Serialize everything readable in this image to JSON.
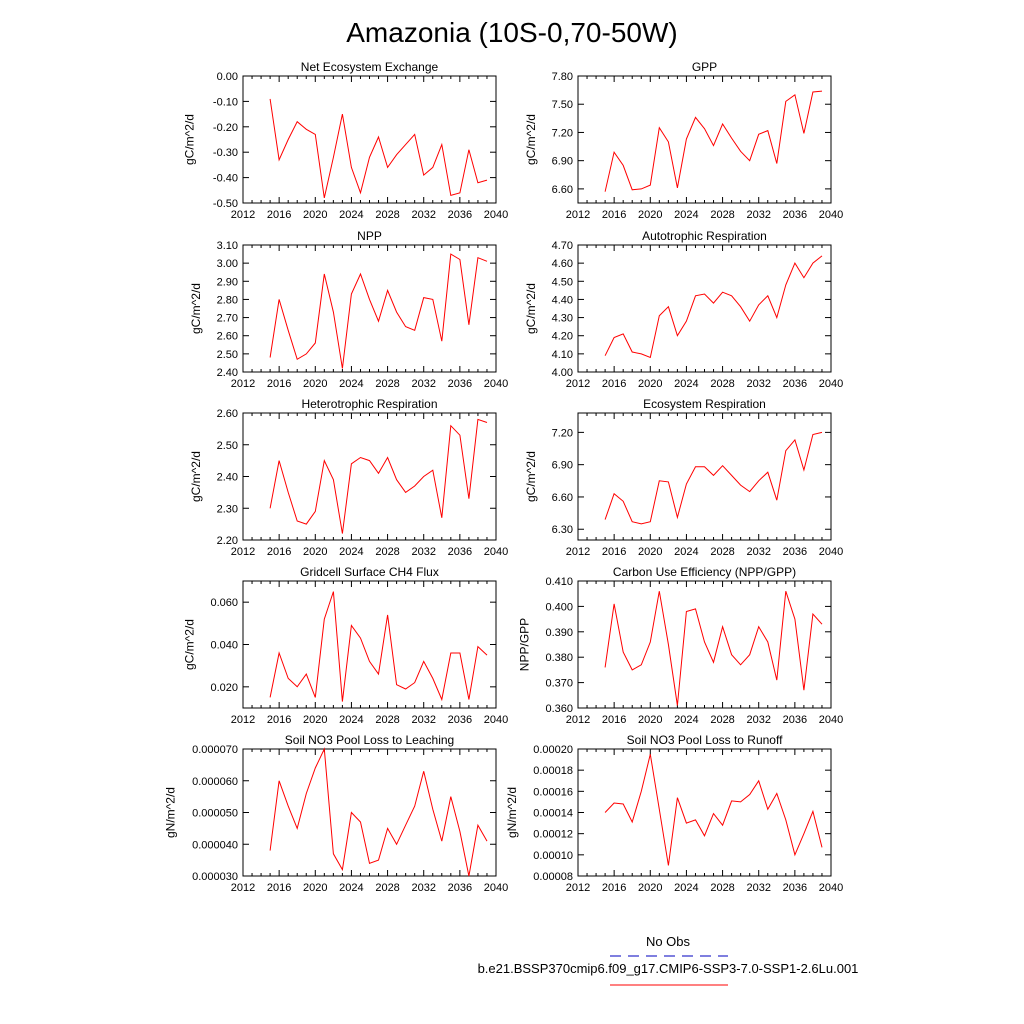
{
  "figure": {
    "title": "Amazonia (10S-0,70-50W)",
    "legend": {
      "obs_label": "No Obs",
      "obs_color": "#3333cc",
      "model_label": "b.e21.BSSP370cmip6.f09_g17.CMIP6-SSP3-7.0-SSP1-2.6Lu.001",
      "model_color": "#ff0000"
    }
  },
  "chart_data": [
    {
      "type": "line",
      "title": "Net Ecosystem Exchange",
      "ylabel": "gC/m^2/d",
      "xlabel": "",
      "xlim": [
        2012,
        2040
      ],
      "ylim": [
        -0.5,
        0.0
      ],
      "xticks": [
        "2012",
        "2016",
        "2020",
        "2024",
        "2028",
        "2032",
        "2036",
        "2040"
      ],
      "yticks": [
        "0.00",
        "-0.10",
        "-0.20",
        "-0.30",
        "-0.40",
        "-0.50"
      ],
      "yticks_values": [
        0.0,
        -0.1,
        -0.2,
        -0.3,
        -0.4,
        -0.5
      ],
      "series": [
        {
          "color": "#ff0000",
          "x": [
            2015,
            2016,
            2017,
            2018,
            2019,
            2020,
            2021,
            2022,
            2023,
            2024,
            2025,
            2026,
            2027,
            2028,
            2029,
            2030,
            2031,
            2032,
            2033,
            2034,
            2035,
            2036,
            2037,
            2038,
            2039
          ],
          "y": [
            -0.09,
            -0.33,
            -0.25,
            -0.18,
            -0.21,
            -0.23,
            -0.48,
            -0.32,
            -0.15,
            -0.36,
            -0.46,
            -0.32,
            -0.24,
            -0.36,
            -0.31,
            -0.27,
            -0.23,
            -0.39,
            -0.36,
            -0.27,
            -0.47,
            -0.46,
            -0.29,
            -0.42,
            -0.41
          ]
        }
      ]
    },
    {
      "type": "line",
      "title": "GPP",
      "ylabel": "gC/m^2/d",
      "xlabel": "",
      "xlim": [
        2012,
        2040
      ],
      "ylim": [
        6.45,
        7.8
      ],
      "xticks": [
        "2012",
        "2016",
        "2020",
        "2024",
        "2028",
        "2032",
        "2036",
        "2040"
      ],
      "yticks": [
        "7.80",
        "7.50",
        "7.20",
        "6.90",
        "6.60"
      ],
      "yticks_values": [
        7.8,
        7.5,
        7.2,
        6.9,
        6.6
      ],
      "series": [
        {
          "color": "#ff0000",
          "x": [
            2015,
            2016,
            2017,
            2018,
            2019,
            2020,
            2021,
            2022,
            2023,
            2024,
            2025,
            2026,
            2027,
            2028,
            2029,
            2030,
            2031,
            2032,
            2033,
            2034,
            2035,
            2036,
            2037,
            2038,
            2039
          ],
          "y": [
            6.57,
            6.99,
            6.85,
            6.59,
            6.6,
            6.64,
            7.25,
            7.1,
            6.61,
            7.13,
            7.36,
            7.24,
            7.06,
            7.29,
            7.14,
            7.0,
            6.9,
            7.18,
            7.22,
            6.87,
            7.53,
            7.6,
            7.19,
            7.63,
            7.64
          ]
        }
      ]
    },
    {
      "type": "line",
      "title": "NPP",
      "ylabel": "gC/m^2/d",
      "xlabel": "",
      "xlim": [
        2012,
        2040
      ],
      "ylim": [
        2.4,
        3.1
      ],
      "xticks": [
        "2012",
        "2016",
        "2020",
        "2024",
        "2028",
        "2032",
        "2036",
        "2040"
      ],
      "yticks": [
        "3.10",
        "3.00",
        "2.90",
        "2.80",
        "2.70",
        "2.60",
        "2.50",
        "2.40"
      ],
      "yticks_values": [
        3.1,
        3.0,
        2.9,
        2.8,
        2.7,
        2.6,
        2.5,
        2.4
      ],
      "series": [
        {
          "color": "#ff0000",
          "x": [
            2015,
            2016,
            2017,
            2018,
            2019,
            2020,
            2021,
            2022,
            2023,
            2024,
            2025,
            2026,
            2027,
            2028,
            2029,
            2030,
            2031,
            2032,
            2033,
            2034,
            2035,
            2036,
            2037,
            2038,
            2039
          ],
          "y": [
            2.48,
            2.8,
            2.63,
            2.47,
            2.5,
            2.56,
            2.94,
            2.73,
            2.42,
            2.83,
            2.94,
            2.8,
            2.68,
            2.85,
            2.73,
            2.65,
            2.63,
            2.81,
            2.8,
            2.57,
            3.05,
            3.02,
            2.66,
            3.03,
            3.01
          ]
        }
      ]
    },
    {
      "type": "line",
      "title": "Autotrophic Respiration",
      "ylabel": "gC/m^2/d",
      "xlabel": "",
      "xlim": [
        2012,
        2040
      ],
      "ylim": [
        4.0,
        4.7
      ],
      "xticks": [
        "2012",
        "2016",
        "2020",
        "2024",
        "2028",
        "2032",
        "2036",
        "2040"
      ],
      "yticks": [
        "4.70",
        "4.60",
        "4.50",
        "4.40",
        "4.30",
        "4.20",
        "4.10",
        "4.00"
      ],
      "yticks_values": [
        4.7,
        4.6,
        4.5,
        4.4,
        4.3,
        4.2,
        4.1,
        4.0
      ],
      "series": [
        {
          "color": "#ff0000",
          "x": [
            2015,
            2016,
            2017,
            2018,
            2019,
            2020,
            2021,
            2022,
            2023,
            2024,
            2025,
            2026,
            2027,
            2028,
            2029,
            2030,
            2031,
            2032,
            2033,
            2034,
            2035,
            2036,
            2037,
            2038,
            2039
          ],
          "y": [
            4.09,
            4.19,
            4.21,
            4.11,
            4.1,
            4.08,
            4.31,
            4.36,
            4.2,
            4.28,
            4.42,
            4.43,
            4.38,
            4.44,
            4.42,
            4.36,
            4.28,
            4.37,
            4.42,
            4.3,
            4.48,
            4.6,
            4.52,
            4.6,
            4.64
          ]
        }
      ]
    },
    {
      "type": "line",
      "title": "Heterotrophic Respiration",
      "ylabel": "gC/m^2/d",
      "xlabel": "",
      "xlim": [
        2012,
        2040
      ],
      "ylim": [
        2.2,
        2.6
      ],
      "xticks": [
        "2012",
        "2016",
        "2020",
        "2024",
        "2028",
        "2032",
        "2036",
        "2040"
      ],
      "yticks": [
        "2.60",
        "2.50",
        "2.40",
        "2.30",
        "2.20"
      ],
      "yticks_values": [
        2.6,
        2.5,
        2.4,
        2.3,
        2.2
      ],
      "series": [
        {
          "color": "#ff0000",
          "x": [
            2015,
            2016,
            2017,
            2018,
            2019,
            2020,
            2021,
            2022,
            2023,
            2024,
            2025,
            2026,
            2027,
            2028,
            2029,
            2030,
            2031,
            2032,
            2033,
            2034,
            2035,
            2036,
            2037,
            2038,
            2039
          ],
          "y": [
            2.3,
            2.45,
            2.35,
            2.26,
            2.25,
            2.29,
            2.45,
            2.39,
            2.22,
            2.44,
            2.46,
            2.45,
            2.41,
            2.46,
            2.39,
            2.35,
            2.37,
            2.4,
            2.42,
            2.27,
            2.56,
            2.53,
            2.33,
            2.58,
            2.57
          ]
        }
      ]
    },
    {
      "type": "line",
      "title": "Ecosystem Respiration",
      "ylabel": "gC/m^2/d",
      "xlabel": "",
      "xlim": [
        2012,
        2040
      ],
      "ylim": [
        6.2,
        7.38
      ],
      "xticks": [
        "2012",
        "2016",
        "2020",
        "2024",
        "2028",
        "2032",
        "2036",
        "2040"
      ],
      "yticks": [
        "7.20",
        "6.90",
        "6.60",
        "6.30"
      ],
      "yticks_values": [
        7.2,
        6.9,
        6.6,
        6.3
      ],
      "series": [
        {
          "color": "#ff0000",
          "x": [
            2015,
            2016,
            2017,
            2018,
            2019,
            2020,
            2021,
            2022,
            2023,
            2024,
            2025,
            2026,
            2027,
            2028,
            2029,
            2030,
            2031,
            2032,
            2033,
            2034,
            2035,
            2036,
            2037,
            2038,
            2039
          ],
          "y": [
            6.39,
            6.63,
            6.56,
            6.37,
            6.35,
            6.37,
            6.75,
            6.74,
            6.41,
            6.72,
            6.88,
            6.88,
            6.8,
            6.89,
            6.8,
            6.71,
            6.65,
            6.75,
            6.83,
            6.57,
            7.03,
            7.13,
            6.85,
            7.18,
            7.2
          ]
        }
      ]
    },
    {
      "type": "line",
      "title": "Gridcell Surface CH4 Flux",
      "ylabel": "gC/m^2/d",
      "xlabel": "",
      "xlim": [
        2012,
        2040
      ],
      "ylim": [
        0.01,
        0.07
      ],
      "xticks": [
        "2012",
        "2016",
        "2020",
        "2024",
        "2028",
        "2032",
        "2036",
        "2040"
      ],
      "yticks": [
        "0.060",
        "0.040",
        "0.020"
      ],
      "yticks_values": [
        0.06,
        0.04,
        0.02
      ],
      "series": [
        {
          "color": "#ff0000",
          "x": [
            2015,
            2016,
            2017,
            2018,
            2019,
            2020,
            2021,
            2022,
            2023,
            2024,
            2025,
            2026,
            2027,
            2028,
            2029,
            2030,
            2031,
            2032,
            2033,
            2034,
            2035,
            2036,
            2037,
            2038,
            2039
          ],
          "y": [
            0.015,
            0.036,
            0.024,
            0.02,
            0.026,
            0.015,
            0.052,
            0.065,
            0.013,
            0.049,
            0.043,
            0.032,
            0.026,
            0.054,
            0.021,
            0.019,
            0.022,
            0.032,
            0.024,
            0.014,
            0.036,
            0.036,
            0.014,
            0.039,
            0.035
          ]
        }
      ]
    },
    {
      "type": "line",
      "title": "Carbon Use Efficiency (NPP/GPP)",
      "ylabel": "NPP/GPP",
      "xlabel": "",
      "xlim": [
        2012,
        2040
      ],
      "ylim": [
        0.36,
        0.41
      ],
      "xticks": [
        "2012",
        "2016",
        "2020",
        "2024",
        "2028",
        "2032",
        "2036",
        "2040"
      ],
      "yticks": [
        "0.410",
        "0.400",
        "0.390",
        "0.380",
        "0.370",
        "0.360"
      ],
      "yticks_values": [
        0.41,
        0.4,
        0.39,
        0.38,
        0.37,
        0.36
      ],
      "series": [
        {
          "color": "#ff0000",
          "x": [
            2015,
            2016,
            2017,
            2018,
            2019,
            2020,
            2021,
            2022,
            2023,
            2024,
            2025,
            2026,
            2027,
            2028,
            2029,
            2030,
            2031,
            2032,
            2033,
            2034,
            2035,
            2036,
            2037,
            2038,
            2039
          ],
          "y": [
            0.376,
            0.401,
            0.382,
            0.375,
            0.377,
            0.386,
            0.406,
            0.385,
            0.361,
            0.398,
            0.399,
            0.386,
            0.378,
            0.392,
            0.381,
            0.377,
            0.381,
            0.392,
            0.386,
            0.371,
            0.406,
            0.395,
            0.367,
            0.397,
            0.393
          ]
        }
      ]
    },
    {
      "type": "line",
      "title": "Soil NO3 Pool Loss to Leaching",
      "ylabel": "gN/m^2/d",
      "xlabel": "",
      "xlim": [
        2012,
        2040
      ],
      "ylim": [
        3e-05,
        7e-05
      ],
      "xticks": [
        "2012",
        "2016",
        "2020",
        "2024",
        "2028",
        "2032",
        "2036",
        "2040"
      ],
      "yticks": [
        "0.000070",
        "0.000060",
        "0.000050",
        "0.000040",
        "0.000030"
      ],
      "yticks_values": [
        7e-05,
        6e-05,
        5e-05,
        4e-05,
        3e-05
      ],
      "series": [
        {
          "color": "#ff0000",
          "x": [
            2015,
            2016,
            2017,
            2018,
            2019,
            2020,
            2021,
            2022,
            2023,
            2024,
            2025,
            2026,
            2027,
            2028,
            2029,
            2030,
            2031,
            2032,
            2033,
            2034,
            2035,
            2036,
            2037,
            2038,
            2039
          ],
          "y": [
            3.8e-05,
            6e-05,
            5.2e-05,
            4.5e-05,
            5.6e-05,
            6.4e-05,
            7e-05,
            3.7e-05,
            3.2e-05,
            5e-05,
            4.7e-05,
            3.4e-05,
            3.5e-05,
            4.5e-05,
            4e-05,
            4.6e-05,
            5.2e-05,
            6.3e-05,
            5.1e-05,
            4.1e-05,
            5.5e-05,
            4.4e-05,
            3e-05,
            4.6e-05,
            4.1e-05
          ]
        }
      ]
    },
    {
      "type": "line",
      "title": "Soil NO3 Pool Loss to Runoff",
      "ylabel": "gN/m^2/d",
      "xlabel": "",
      "xlim": [
        2012,
        2040
      ],
      "ylim": [
        8e-05,
        0.0002
      ],
      "xticks": [
        "2012",
        "2016",
        "2020",
        "2024",
        "2028",
        "2032",
        "2036",
        "2040"
      ],
      "yticks": [
        "0.00020",
        "0.00018",
        "0.00016",
        "0.00014",
        "0.00012",
        "0.00010",
        "0.00008"
      ],
      "yticks_values": [
        0.0002,
        0.00018,
        0.00016,
        0.00014,
        0.00012,
        0.0001,
        8e-05
      ],
      "series": [
        {
          "color": "#ff0000",
          "x": [
            2015,
            2016,
            2017,
            2018,
            2019,
            2020,
            2021,
            2022,
            2023,
            2024,
            2025,
            2026,
            2027,
            2028,
            2029,
            2030,
            2031,
            2032,
            2033,
            2034,
            2035,
            2036,
            2037,
            2038,
            2039
          ],
          "y": [
            0.00014,
            0.000149,
            0.000148,
            0.000131,
            0.00016,
            0.000195,
            0.000143,
            9e-05,
            0.000154,
            0.00013,
            0.000133,
            0.000118,
            0.000139,
            0.000128,
            0.000151,
            0.00015,
            0.000157,
            0.00017,
            0.000143,
            0.000158,
            0.000133,
            0.0001,
            0.00012,
            0.000141,
            0.000107
          ]
        }
      ]
    }
  ]
}
